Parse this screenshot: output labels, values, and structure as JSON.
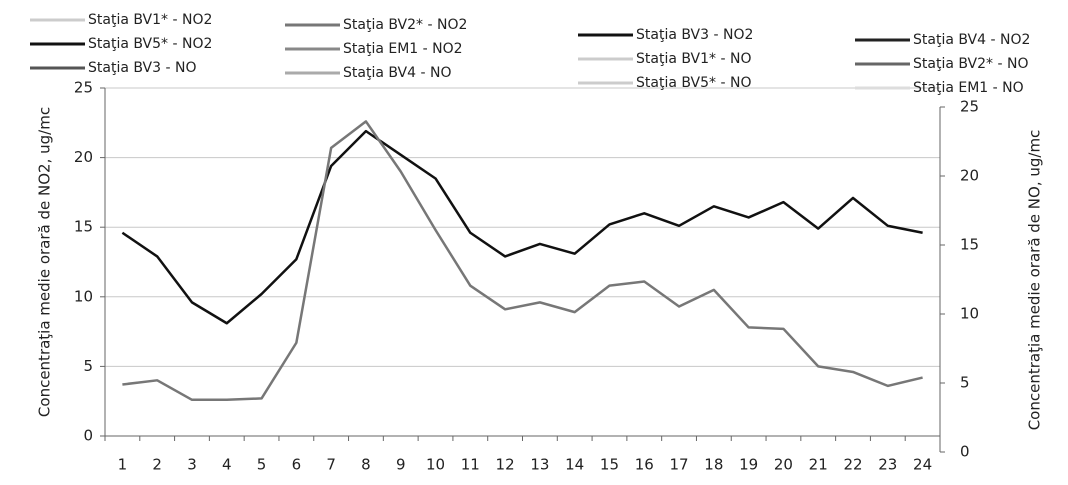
{
  "chart_data": {
    "type": "line",
    "y_label": "Concentraţia medie orară de NO2, ug/mc",
    "y2_label": "Concentraţia medie orară de NO, ug/mc",
    "categories": [
      "1",
      "2",
      "3",
      "4",
      "5",
      "6",
      "7",
      "8",
      "9",
      "10",
      "11",
      "12",
      "13",
      "14",
      "15",
      "16",
      "17",
      "18",
      "19",
      "20",
      "21",
      "22",
      "23",
      "24"
    ],
    "ylim": [
      0,
      25
    ],
    "yticks": [
      0,
      5,
      10,
      15,
      20,
      25
    ],
    "y2lim": [
      0,
      25
    ],
    "y2ticks": [
      0,
      5,
      10,
      15,
      20,
      25
    ],
    "grid": true,
    "series": [
      {
        "name": "Staţia BV1* - NO2",
        "color": "#cccccc",
        "values": [
          null,
          null,
          null,
          null,
          null,
          null,
          null,
          null,
          null,
          null,
          null,
          null,
          null,
          null,
          null,
          null,
          null,
          null,
          null,
          null,
          null,
          null,
          null,
          null
        ]
      },
      {
        "name": "Staţia BV5* - NO2",
        "color": "#111111",
        "values": [
          14.6,
          12.9,
          9.6,
          8.1,
          10.2,
          12.7,
          19.4,
          21.9,
          20.2,
          18.5,
          14.6,
          12.9,
          13.8,
          13.1,
          15.2,
          16.0,
          15.1,
          16.5,
          15.7,
          16.8,
          14.9,
          17.1,
          15.1,
          14.6
        ]
      },
      {
        "name": "Staţia BV3 - NO",
        "color": "#555555",
        "axis": "y2",
        "values": [
          null,
          null,
          null,
          null,
          null,
          null,
          null,
          null,
          null,
          null,
          null,
          null,
          null,
          null,
          null,
          null,
          null,
          null,
          null,
          null,
          null,
          null,
          null,
          null
        ]
      },
      {
        "name": "Staţia BV2* - NO2",
        "color": "#777777",
        "values": [
          3.7,
          4.0,
          2.6,
          2.6,
          2.7,
          6.7,
          20.7,
          22.6,
          19.0,
          14.8,
          10.8,
          9.1,
          9.6,
          8.9,
          10.8,
          11.1,
          9.3,
          10.5,
          7.8,
          7.7,
          5.0,
          4.6,
          3.6,
          4.2
        ]
      },
      {
        "name": "Staţia EM1 - NO2",
        "color": "#888888",
        "values": [
          null,
          null,
          null,
          null,
          null,
          null,
          null,
          null,
          null,
          null,
          null,
          null,
          null,
          null,
          null,
          null,
          null,
          null,
          null,
          null,
          null,
          null,
          null,
          null
        ]
      },
      {
        "name": "Staţia BV4 - NO",
        "color": "#aaaaaa",
        "axis": "y2",
        "values": [
          null,
          null,
          null,
          null,
          null,
          null,
          null,
          null,
          null,
          null,
          null,
          null,
          null,
          null,
          null,
          null,
          null,
          null,
          null,
          null,
          null,
          null,
          null,
          null
        ]
      },
      {
        "name": "Staţia BV3 - NO2",
        "color": "#111111",
        "values": [
          null,
          null,
          null,
          null,
          null,
          null,
          null,
          null,
          null,
          null,
          null,
          null,
          null,
          null,
          null,
          null,
          null,
          null,
          null,
          null,
          null,
          null,
          null,
          null
        ]
      },
      {
        "name": "Staţia BV1* - NO",
        "color": "#cccccc",
        "axis": "y2",
        "values": [
          null,
          null,
          null,
          null,
          null,
          null,
          null,
          null,
          null,
          null,
          null,
          null,
          null,
          null,
          null,
          null,
          null,
          null,
          null,
          null,
          null,
          null,
          null,
          null
        ]
      },
      {
        "name": "Staţia BV5* - NO",
        "color": "#cccccc",
        "axis": "y2",
        "values": [
          null,
          null,
          null,
          null,
          null,
          null,
          null,
          null,
          null,
          null,
          null,
          null,
          null,
          null,
          null,
          null,
          null,
          null,
          null,
          null,
          null,
          null,
          null,
          null
        ]
      },
      {
        "name": "Staţia BV4 - NO2",
        "color": "#222222",
        "values": [
          null,
          null,
          null,
          null,
          null,
          null,
          null,
          null,
          null,
          null,
          null,
          null,
          null,
          null,
          null,
          null,
          null,
          null,
          null,
          null,
          null,
          null,
          null,
          null
        ]
      },
      {
        "name": "Staţia BV2* - NO",
        "color": "#666666",
        "axis": "y2",
        "values": [
          null,
          null,
          null,
          null,
          null,
          null,
          null,
          null,
          null,
          null,
          null,
          null,
          null,
          null,
          null,
          null,
          null,
          null,
          null,
          null,
          null,
          null,
          null,
          null
        ]
      },
      {
        "name": "Staţia EM1 - NO",
        "color": "#dddddd",
        "axis": "y2",
        "values": [
          null,
          null,
          null,
          null,
          null,
          null,
          null,
          null,
          null,
          null,
          null,
          null,
          null,
          null,
          null,
          null,
          null,
          null,
          null,
          null,
          null,
          null,
          null,
          null
        ]
      }
    ]
  }
}
